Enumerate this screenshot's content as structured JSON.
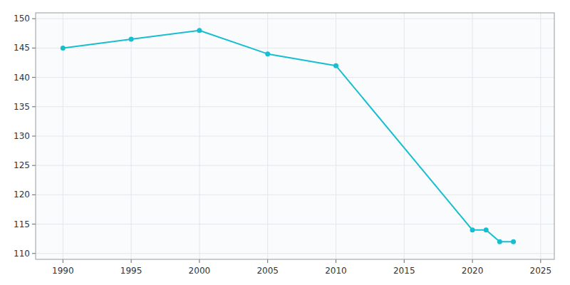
{
  "chart_data": {
    "type": "line",
    "x": [
      1990,
      1995,
      2000,
      2005,
      2010,
      2020,
      2021,
      2022,
      2023
    ],
    "values": [
      145,
      146.5,
      148,
      144,
      142,
      114,
      114,
      112,
      112
    ],
    "color": "#17becf",
    "marker": "circle",
    "xlim": [
      1988,
      2026
    ],
    "ylim": [
      109,
      151
    ],
    "xticks": [
      1990,
      1995,
      2000,
      2005,
      2010,
      2015,
      2020,
      2025
    ],
    "yticks": [
      110,
      115,
      120,
      125,
      130,
      135,
      140,
      145,
      150
    ],
    "grid": true
  }
}
